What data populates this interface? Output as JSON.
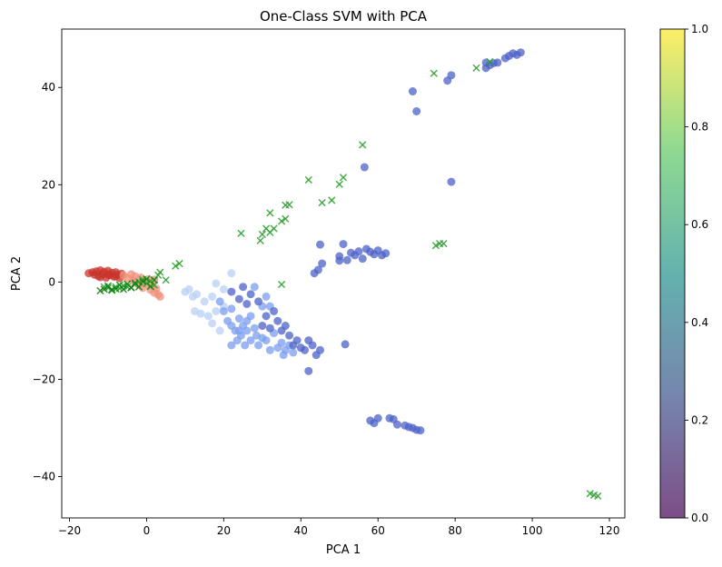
{
  "chart_data": {
    "type": "scatter",
    "title": "One-Class SVM with PCA",
    "xlabel": "PCA 1",
    "ylabel": "PCA 2",
    "xlim": [
      -22,
      124
    ],
    "ylim": [
      -48.5,
      52
    ],
    "grid": false,
    "x_ticks": [
      -20,
      0,
      20,
      40,
      60,
      80,
      100,
      120
    ],
    "y_ticks": [
      -40,
      -20,
      0,
      20,
      40
    ],
    "colorbar": {
      "range": [
        0,
        1
      ],
      "ticks": [
        0.0,
        0.2,
        0.4,
        0.6,
        0.8,
        1.0
      ],
      "tick_labels": [
        "0.0",
        "0.2",
        "0.4",
        "0.6",
        "0.8",
        "1.0"
      ],
      "colormap": "viridis"
    },
    "series": [
      {
        "marker": "circle",
        "color": "#c8342c",
        "points": [
          [
            -15,
            1.8
          ],
          [
            -14,
            2
          ],
          [
            -13.5,
            1.5
          ],
          [
            -13,
            2.2
          ],
          [
            -12.5,
            1.2
          ],
          [
            -12,
            2.4
          ],
          [
            -11.5,
            1.6
          ],
          [
            -11,
            2.1
          ],
          [
            -10.5,
            0.9
          ],
          [
            -10,
            2.3
          ],
          [
            -9.5,
            1.4
          ],
          [
            -9,
            1.9
          ],
          [
            -8.5,
            1.1
          ],
          [
            -8,
            2
          ],
          [
            -7.5,
            1.5
          ],
          [
            -7,
            0.8
          ],
          [
            -6.5,
            1.7
          ],
          [
            -12,
            1
          ],
          [
            -10,
            1.5
          ],
          [
            -8,
            1.2
          ]
        ]
      },
      {
        "marker": "circle",
        "color": "#f0907a",
        "points": [
          [
            -6,
            1.4
          ],
          [
            -5,
            0.8
          ],
          [
            -4,
            1.6
          ],
          [
            -3.5,
            0.3
          ],
          [
            -3,
            1.2
          ],
          [
            -2,
            -0.6
          ],
          [
            -1.5,
            0.9
          ],
          [
            -1,
            -1.2
          ],
          [
            0,
            -0.4
          ],
          [
            0.5,
            0.6
          ],
          [
            1,
            -1.6
          ],
          [
            1.5,
            -0.8
          ],
          [
            2,
            -2.2
          ],
          [
            2.5,
            -1.4
          ],
          [
            3,
            -2.6
          ],
          [
            3.5,
            -3
          ],
          [
            2,
            0.5
          ],
          [
            -1,
            0.2
          ]
        ]
      },
      {
        "marker": "circle",
        "color": "#b9d0f5",
        "points": [
          [
            10,
            -2
          ],
          [
            11,
            -1.5
          ],
          [
            12,
            -3
          ],
          [
            12.5,
            -6
          ],
          [
            13,
            -2.5
          ],
          [
            14,
            -6.5
          ],
          [
            15,
            -4
          ],
          [
            16,
            -7
          ],
          [
            17,
            -8.5
          ],
          [
            18,
            -6
          ],
          [
            19,
            -10
          ],
          [
            20,
            -1.5
          ],
          [
            20,
            -5
          ],
          [
            17,
            -3
          ],
          [
            22,
            1.8
          ],
          [
            18,
            -0.3
          ]
        ]
      },
      {
        "marker": "circle",
        "color": "#7b9ef0",
        "points": [
          [
            19,
            -4
          ],
          [
            20,
            -6
          ],
          [
            21,
            -8
          ],
          [
            22,
            -5.5
          ],
          [
            22,
            -9
          ],
          [
            23,
            -10
          ],
          [
            23.5,
            -12
          ],
          [
            24,
            -7.5
          ],
          [
            24.5,
            -11
          ],
          [
            25,
            -9
          ],
          [
            25.5,
            -13
          ],
          [
            26,
            -10
          ],
          [
            27,
            -12
          ],
          [
            28,
            -9.5
          ],
          [
            28.5,
            -11
          ],
          [
            29,
            -13
          ],
          [
            30,
            -11.5
          ],
          [
            31,
            -12
          ],
          [
            32,
            -14
          ],
          [
            33,
            -10.5
          ],
          [
            34,
            -13.5
          ],
          [
            35,
            -12.5
          ],
          [
            35.5,
            -15
          ],
          [
            36,
            -14
          ],
          [
            37,
            -13
          ],
          [
            38,
            -14.5
          ],
          [
            27,
            -7
          ],
          [
            30,
            -5
          ],
          [
            31,
            -3
          ],
          [
            32,
            -5
          ],
          [
            28,
            -1
          ],
          [
            26,
            -8
          ],
          [
            24,
            -10
          ],
          [
            22,
            -13
          ]
        ]
      },
      {
        "marker": "circle",
        "color": "#4c62c8",
        "points": [
          [
            22,
            -2
          ],
          [
            24,
            -3.5
          ],
          [
            25,
            -1
          ],
          [
            26,
            -4.5
          ],
          [
            27,
            -2.5
          ],
          [
            29,
            -4
          ],
          [
            30,
            -9
          ],
          [
            31,
            -7
          ],
          [
            32,
            -9.5
          ],
          [
            33,
            -6
          ],
          [
            34,
            -8
          ],
          [
            35,
            -10
          ],
          [
            36,
            -9
          ],
          [
            37,
            -11
          ],
          [
            38,
            -13
          ],
          [
            39,
            -12
          ],
          [
            40,
            -13.5
          ],
          [
            41,
            -14
          ],
          [
            42,
            -12
          ],
          [
            43,
            -13
          ],
          [
            44,
            -15
          ],
          [
            45,
            -14
          ],
          [
            42,
            -18.3
          ],
          [
            51.5,
            -12.8
          ],
          [
            43.5,
            1.8
          ],
          [
            44.5,
            2.5
          ],
          [
            45,
            7.7
          ],
          [
            45.5,
            3.8
          ],
          [
            50,
            4.4
          ],
          [
            50,
            5.3
          ],
          [
            51,
            7.8
          ],
          [
            52,
            4.5
          ],
          [
            53,
            6
          ],
          [
            54,
            5.5
          ],
          [
            55,
            6.3
          ],
          [
            56,
            4.8
          ],
          [
            57,
            6.8
          ],
          [
            58,
            6.2
          ],
          [
            59,
            5.7
          ],
          [
            60,
            6.5
          ],
          [
            61,
            5.5
          ],
          [
            62,
            5.9
          ],
          [
            56.5,
            23.6
          ],
          [
            69,
            39.2
          ],
          [
            70,
            35.1
          ],
          [
            78,
            41.4
          ],
          [
            79,
            42.5
          ],
          [
            79,
            20.6
          ],
          [
            58,
            -28.5
          ],
          [
            59,
            -29
          ],
          [
            60,
            -28
          ],
          [
            63,
            -28
          ],
          [
            64,
            -28.2
          ],
          [
            65,
            -29.3
          ],
          [
            67,
            -29.5
          ],
          [
            68,
            -29.8
          ],
          [
            69,
            -30
          ],
          [
            70,
            -30.4
          ],
          [
            71,
            -30.5
          ],
          [
            88,
            44
          ],
          [
            88,
            45.1
          ],
          [
            89,
            44.6
          ],
          [
            90,
            45
          ],
          [
            91,
            45.1
          ],
          [
            93,
            46
          ],
          [
            94,
            46.5
          ],
          [
            95,
            47
          ],
          [
            96,
            46.7
          ],
          [
            97,
            47.2
          ]
        ]
      },
      {
        "marker": "x",
        "color": "#2ea02e",
        "points": [
          [
            -11,
            -1
          ],
          [
            -10,
            -1.2
          ],
          [
            -9,
            -1.5
          ],
          [
            -8,
            -1
          ],
          [
            -7,
            -1.3
          ],
          [
            -6,
            -0.8
          ],
          [
            -5,
            -1
          ],
          [
            -4,
            -1.2
          ],
          [
            -3,
            -0.5
          ],
          [
            -2,
            0
          ],
          [
            -1,
            0.5
          ],
          [
            0,
            -0.3
          ],
          [
            1,
            0.2
          ],
          [
            2,
            -0.6
          ],
          [
            3,
            1.4
          ],
          [
            3.5,
            2
          ],
          [
            5,
            0.4
          ],
          [
            7.5,
            3.3
          ],
          [
            8.5,
            3.8
          ],
          [
            24.5,
            10
          ],
          [
            29.5,
            8.5
          ],
          [
            30,
            9.8
          ],
          [
            31,
            11
          ],
          [
            32,
            10.2
          ],
          [
            32,
            14.2
          ],
          [
            33,
            11
          ],
          [
            35,
            12.5
          ],
          [
            36,
            13
          ],
          [
            36,
            15.8
          ],
          [
            37,
            15.9
          ],
          [
            35,
            -0.5
          ],
          [
            42,
            21
          ],
          [
            45.5,
            16.3
          ],
          [
            48,
            16.8
          ],
          [
            50,
            20.1
          ],
          [
            51,
            21.5
          ],
          [
            56,
            28.2
          ],
          [
            74.5,
            42.9
          ],
          [
            75,
            7.5
          ],
          [
            76,
            7.9
          ],
          [
            77,
            7.9
          ],
          [
            85.5,
            44
          ],
          [
            89,
            45.3
          ],
          [
            115,
            -43.5
          ],
          [
            116,
            -43.8
          ],
          [
            117,
            -44
          ]
        ]
      },
      {
        "marker": "x",
        "color": "#108010",
        "points": [
          [
            -11,
            -1.5
          ],
          [
            -10,
            -0.8
          ],
          [
            -9,
            -1.7
          ],
          [
            -8,
            -1.4
          ],
          [
            -7,
            -0.6
          ],
          [
            -6,
            -1.5
          ],
          [
            -5,
            -0.4
          ],
          [
            -4,
            -1.1
          ],
          [
            -3,
            -0.2
          ],
          [
            -2,
            -1
          ],
          [
            -1,
            0.1
          ],
          [
            0,
            0.6
          ],
          [
            1,
            -0.9
          ],
          [
            2,
            0.4
          ],
          [
            -12,
            -1.8
          ]
        ]
      }
    ]
  }
}
